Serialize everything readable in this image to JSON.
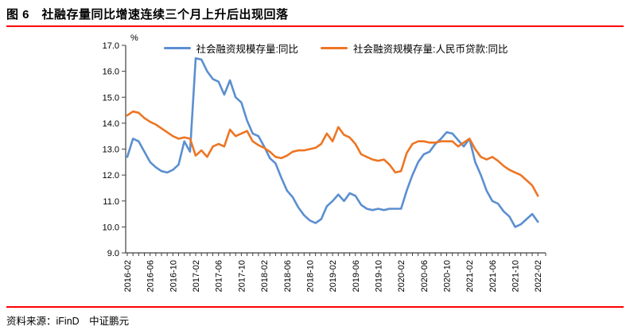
{
  "title": "图 6　社融存量同比增速连续三个月上升后出现回落",
  "source_note": "资料来源：iFinD　中证鹏元",
  "colors": {
    "accent_red": "#FF0000",
    "series_sofi": "#5B8FD0",
    "series_loan": "#ED7524",
    "axis": "#404040"
  },
  "chart_data": {
    "type": "line",
    "title": "社融存量同比增速连续三个月上升后出现回落",
    "unit_label": "%",
    "ylim": [
      9.0,
      17.0
    ],
    "ytick_step": 1.0,
    "grid": false,
    "legend_position": "top-center",
    "x_tick_label_every": 4,
    "x": [
      "2016-02",
      "2016-03",
      "2016-04",
      "2016-05",
      "2016-06",
      "2016-07",
      "2016-08",
      "2016-09",
      "2016-10",
      "2016-11",
      "2016-12",
      "2017-01",
      "2017-02",
      "2017-03",
      "2017-04",
      "2017-05",
      "2017-06",
      "2017-07",
      "2017-08",
      "2017-09",
      "2017-10",
      "2017-11",
      "2017-12",
      "2018-01",
      "2018-02",
      "2018-03",
      "2018-04",
      "2018-05",
      "2018-06",
      "2018-07",
      "2018-08",
      "2018-09",
      "2018-10",
      "2018-11",
      "2018-12",
      "2019-01",
      "2019-02",
      "2019-03",
      "2019-04",
      "2019-05",
      "2019-06",
      "2019-07",
      "2019-08",
      "2019-09",
      "2019-10",
      "2019-11",
      "2019-12",
      "2020-01",
      "2020-02",
      "2020-03",
      "2020-04",
      "2020-05",
      "2020-06",
      "2020-07",
      "2020-08",
      "2020-09",
      "2020-10",
      "2020-11",
      "2020-12",
      "2021-01",
      "2021-02",
      "2021-03",
      "2021-04",
      "2021-05",
      "2021-06",
      "2021-07",
      "2021-08",
      "2021-09",
      "2021-10",
      "2021-11",
      "2021-12",
      "2022-01",
      "2022-02"
    ],
    "x_tick_labels": [
      "2016-02",
      "2016-06",
      "2016-10",
      "2017-02",
      "2017-06",
      "2017-10",
      "2018-02",
      "2018-06",
      "2018-10",
      "2019-02",
      "2019-06",
      "2019-10",
      "2020-02",
      "2020-06",
      "2020-10",
      "2021-02",
      "2021-06",
      "2021-10",
      "2022-02"
    ],
    "series": [
      {
        "name": "社会融资规模存量:同比",
        "color_key": "series_sofi",
        "values": [
          12.7,
          13.4,
          13.3,
          12.9,
          12.5,
          12.3,
          12.15,
          12.1,
          12.2,
          12.4,
          13.3,
          12.9,
          16.5,
          16.45,
          16.0,
          15.7,
          15.6,
          15.1,
          15.65,
          15.0,
          14.8,
          14.1,
          13.6,
          13.5,
          13.1,
          12.65,
          12.45,
          11.9,
          11.4,
          11.15,
          10.75,
          10.45,
          10.25,
          10.15,
          10.3,
          10.8,
          11.0,
          11.25,
          11.0,
          11.3,
          11.2,
          10.85,
          10.7,
          10.65,
          10.7,
          10.65,
          10.7,
          10.7,
          10.7,
          11.4,
          12.0,
          12.5,
          12.8,
          12.9,
          13.2,
          13.4,
          13.65,
          13.6,
          13.35,
          13.1,
          13.4,
          12.5,
          12.0,
          11.4,
          11.0,
          10.9,
          10.6,
          10.4,
          10.0,
          10.1,
          10.3,
          10.5,
          10.2
        ]
      },
      {
        "name": "社会融资规模存量:人民币贷款:同比",
        "color_key": "series_loan",
        "values": [
          14.3,
          14.45,
          14.4,
          14.2,
          14.05,
          13.95,
          13.8,
          13.65,
          13.5,
          13.4,
          13.45,
          13.4,
          12.75,
          12.95,
          12.7,
          13.1,
          13.2,
          13.1,
          13.75,
          13.5,
          13.6,
          13.7,
          13.3,
          13.15,
          13.05,
          12.9,
          12.7,
          12.65,
          12.75,
          12.9,
          12.95,
          12.95,
          13.0,
          13.05,
          13.2,
          13.6,
          13.3,
          13.85,
          13.55,
          13.45,
          13.2,
          12.8,
          12.7,
          12.6,
          12.55,
          12.6,
          12.4,
          12.1,
          12.15,
          12.85,
          13.2,
          13.3,
          13.3,
          13.25,
          13.25,
          13.3,
          13.3,
          13.3,
          13.1,
          13.25,
          13.4,
          13.0,
          12.7,
          12.6,
          12.7,
          12.55,
          12.35,
          12.2,
          12.1,
          12.0,
          11.8,
          11.6,
          11.2
        ]
      }
    ]
  }
}
